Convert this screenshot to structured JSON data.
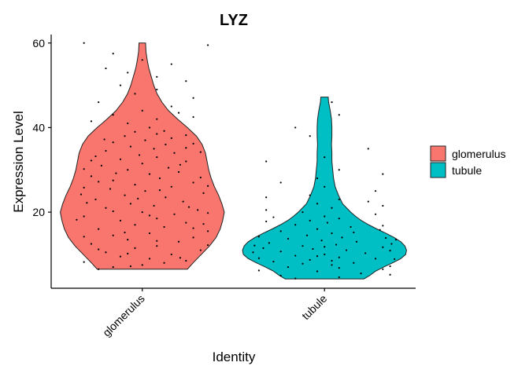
{
  "chart_data": {
    "type": "violin",
    "title": "LYZ",
    "xlabel": "Identity",
    "ylabel": "Expression Level",
    "categories": [
      "glomerulus",
      "tubule"
    ],
    "ylim": [
      2,
      62
    ],
    "yticks": [
      20,
      40,
      60
    ],
    "legend_placement": "right",
    "grid": false,
    "series": [
      {
        "name": "glomerulus",
        "color": "#F8766D",
        "profile": [
          [
            6.5,
            0.55
          ],
          [
            8,
            0.62
          ],
          [
            10,
            0.72
          ],
          [
            12,
            0.82
          ],
          [
            14,
            0.9
          ],
          [
            16,
            0.95
          ],
          [
            18,
            0.98
          ],
          [
            20,
            1.0
          ],
          [
            22,
            0.97
          ],
          [
            24,
            0.93
          ],
          [
            26,
            0.88
          ],
          [
            28,
            0.84
          ],
          [
            30,
            0.81
          ],
          [
            32,
            0.79
          ],
          [
            34,
            0.77
          ],
          [
            36,
            0.73
          ],
          [
            38,
            0.66
          ],
          [
            40,
            0.55
          ],
          [
            42,
            0.43
          ],
          [
            44,
            0.32
          ],
          [
            46,
            0.24
          ],
          [
            48,
            0.18
          ],
          [
            50,
            0.14
          ],
          [
            52,
            0.11
          ],
          [
            54,
            0.08
          ],
          [
            56,
            0.06
          ],
          [
            58,
            0.045
          ],
          [
            60,
            0.04
          ]
        ],
        "points": [
          [
            6.5,
            0.2
          ],
          [
            7,
            0.3
          ],
          [
            7.5,
            0.5
          ],
          [
            8,
            0.65
          ],
          [
            8.5,
            0.8
          ],
          [
            9,
            0.55
          ],
          [
            9.5,
            0.35
          ],
          [
            10,
            0.7
          ],
          [
            10.5,
            0.25
          ],
          [
            11,
            0.9
          ],
          [
            11.5,
            0.45
          ],
          [
            12,
            0.6
          ],
          [
            12.5,
            0.15
          ],
          [
            13,
            0.75
          ],
          [
            13.5,
            0.4
          ],
          [
            14,
            0.85
          ],
          [
            14.5,
            0.3
          ],
          [
            15,
            0.55
          ],
          [
            15.5,
            0.95
          ],
          [
            16,
            0.2
          ],
          [
            16.5,
            0.65
          ],
          [
            17,
            0.45
          ],
          [
            17.5,
            0.8
          ],
          [
            18,
            0.35
          ],
          [
            18.5,
            0.6
          ],
          [
            19,
            0.1
          ],
          [
            19.5,
            0.72
          ],
          [
            20,
            0.5
          ],
          [
            20.5,
            0.88
          ],
          [
            21,
            0.25
          ],
          [
            21.5,
            0.58
          ],
          [
            22,
            0.42
          ],
          [
            22.5,
            0.78
          ],
          [
            23,
            0.18
          ],
          [
            23.5,
            0.66
          ],
          [
            24,
            0.38
          ],
          [
            24.5,
            0.92
          ],
          [
            25,
            0.52
          ],
          [
            25.5,
            0.28
          ],
          [
            26,
            0.7
          ],
          [
            26.5,
            0.45
          ],
          [
            27,
            0.85
          ],
          [
            27.5,
            0.3
          ],
          [
            28,
            0.62
          ],
          [
            28.5,
            0.15
          ],
          [
            29,
            0.55
          ],
          [
            29.5,
            0.75
          ],
          [
            30,
            0.4
          ],
          [
            30.5,
            0.68
          ],
          [
            31,
            0.22
          ],
          [
            31.5,
            0.5
          ],
          [
            32,
            0.8
          ],
          [
            32.5,
            0.35
          ],
          [
            33,
            0.6
          ],
          [
            33.5,
            0.48
          ],
          [
            34,
            0.72
          ],
          [
            34.5,
            0.25
          ],
          [
            35,
            0.58
          ],
          [
            35.5,
            0.42
          ],
          [
            36,
            0.66
          ],
          [
            36.5,
            0.3
          ],
          [
            37,
            0.52
          ],
          [
            37.5,
            0.7
          ],
          [
            38,
            0.38
          ],
          [
            38.5,
            0.6
          ],
          [
            39,
            0.45
          ],
          [
            40,
            0.55
          ],
          [
            41,
            0.4
          ],
          [
            42,
            0.6
          ],
          [
            43,
            0.3
          ],
          [
            44,
            0.5
          ],
          [
            46,
            0.2
          ],
          [
            48,
            0.45
          ],
          [
            50,
            0.35
          ],
          [
            52,
            0.6
          ],
          [
            54,
            0.25
          ],
          [
            56,
            0.5
          ],
          [
            60,
            0.1
          ],
          [
            7.2,
            0.42
          ],
          [
            9.2,
            0.76
          ],
          [
            11.2,
            0.2
          ],
          [
            13.2,
            0.6
          ],
          [
            15.2,
            0.38
          ],
          [
            17.2,
            0.92
          ],
          [
            19.2,
            0.55
          ],
          [
            21.2,
            0.82
          ],
          [
            23.2,
            0.47
          ],
          [
            25.2,
            0.62
          ],
          [
            27.2,
            0.2
          ],
          [
            29.2,
            0.32
          ],
          [
            31.2,
            0.76
          ],
          [
            33.2,
            0.18
          ],
          [
            35.2,
            0.8
          ],
          [
            37.2,
            0.24
          ],
          [
            39.2,
            0.65
          ],
          [
            12.2,
            0.95
          ],
          [
            18.2,
            0.05
          ],
          [
            22.2,
            0.12
          ],
          [
            26.2,
            0.95
          ],
          [
            16.2,
            0.85
          ],
          [
            20.2,
            0.3
          ],
          [
            24.2,
            0.08
          ],
          [
            28.2,
            0.9
          ],
          [
            30.2,
            0.1
          ],
          [
            34.2,
            0.9
          ],
          [
            36.2,
            0.85
          ],
          [
            10.2,
            0.4
          ],
          [
            14.2,
            0.1
          ],
          [
            19.8,
            0.95
          ],
          [
            25.8,
            0.1
          ],
          [
            32.2,
            0.15
          ],
          [
            38.2,
            0.8
          ],
          [
            8.2,
            0.1
          ],
          [
            42.5,
            0.85
          ],
          [
            45,
            0.7
          ],
          [
            47,
            0.85
          ],
          [
            49,
            0.6
          ],
          [
            51,
            0.8
          ],
          [
            53,
            0.4
          ],
          [
            55,
            0.7
          ],
          [
            41.5,
            0.15
          ],
          [
            43.5,
            0.75
          ],
          [
            57.5,
            0.3
          ],
          [
            59.5,
            0.95
          ]
        ]
      },
      {
        "name": "tubule",
        "color": "#00BFC4",
        "profile": [
          [
            4.2,
            0.48
          ],
          [
            5,
            0.55
          ],
          [
            6,
            0.62
          ],
          [
            7,
            0.72
          ],
          [
            8,
            0.83
          ],
          [
            9,
            0.93
          ],
          [
            10,
            0.99
          ],
          [
            11,
            1.0
          ],
          [
            12,
            0.98
          ],
          [
            13,
            0.93
          ],
          [
            14,
            0.85
          ],
          [
            15,
            0.75
          ],
          [
            16,
            0.64
          ],
          [
            17,
            0.54
          ],
          [
            18,
            0.45
          ],
          [
            19,
            0.38
          ],
          [
            20,
            0.32
          ],
          [
            21,
            0.27
          ],
          [
            22,
            0.22
          ],
          [
            24,
            0.17
          ],
          [
            26,
            0.13
          ],
          [
            28,
            0.11
          ],
          [
            30,
            0.1
          ],
          [
            32,
            0.09
          ],
          [
            34,
            0.09
          ],
          [
            36,
            0.085
          ],
          [
            38,
            0.09
          ],
          [
            40,
            0.09
          ],
          [
            42,
            0.085
          ],
          [
            44,
            0.07
          ],
          [
            46,
            0.05
          ],
          [
            47.2,
            0.045
          ]
        ],
        "points": [
          [
            4.3,
            0.3
          ],
          [
            4.6,
            0.6
          ],
          [
            5,
            0.2
          ],
          [
            5.5,
            0.75
          ],
          [
            6,
            0.45
          ],
          [
            6.5,
            0.9
          ],
          [
            7,
            0.25
          ],
          [
            7.5,
            0.55
          ],
          [
            8,
            0.7
          ],
          [
            8.3,
            0.15
          ],
          [
            8.7,
            0.4
          ],
          [
            9,
            0.85
          ],
          [
            9.3,
            0.6
          ],
          [
            9.7,
            0.3
          ],
          [
            10,
            0.5
          ],
          [
            10.3,
            0.78
          ],
          [
            10.7,
            0.2
          ],
          [
            11,
            0.65
          ],
          [
            11.3,
            0.42
          ],
          [
            11.7,
            0.9
          ],
          [
            12,
            0.35
          ],
          [
            12.3,
            0.58
          ],
          [
            12.7,
            0.12
          ],
          [
            13,
            0.72
          ],
          [
            13.3,
            0.48
          ],
          [
            13.7,
            0.25
          ],
          [
            14,
            0.62
          ],
          [
            14.5,
            0.38
          ],
          [
            15,
            0.55
          ],
          [
            15.5,
            0.2
          ],
          [
            16,
            0.45
          ],
          [
            16.5,
            0.68
          ],
          [
            17,
            0.3
          ],
          [
            17.5,
            0.52
          ],
          [
            18,
            0.4
          ],
          [
            18.5,
            0.6
          ],
          [
            19,
            0.5
          ],
          [
            20,
            0.35
          ],
          [
            21,
            0.55
          ],
          [
            22,
            0.45
          ],
          [
            23,
            0.6
          ],
          [
            24,
            0.4
          ],
          [
            26,
            0.5
          ],
          [
            28,
            0.45
          ],
          [
            30,
            0.6
          ],
          [
            33,
            0.5
          ],
          [
            40,
            0.3
          ],
          [
            46,
            0.55
          ],
          [
            9.1,
            0.05
          ],
          [
            10.9,
            0.95
          ],
          [
            12.1,
            0.02
          ],
          [
            13.9,
            0.92
          ],
          [
            8.9,
            0.98
          ],
          [
            11.5,
            0.08
          ],
          [
            14.2,
            0.05
          ],
          [
            15.8,
            0.88
          ],
          [
            17.8,
            0.1
          ],
          [
            19.5,
            0.85
          ],
          [
            20.5,
            0.1
          ],
          [
            22.5,
            0.8
          ],
          [
            7.2,
            0.95
          ],
          [
            6.2,
            0.05
          ],
          [
            5.2,
            0.95
          ],
          [
            13.5,
            0.99
          ],
          [
            10.5,
            0.01
          ],
          [
            12.5,
            0.96
          ],
          [
            16.8,
            0.9
          ],
          [
            18.8,
            0.15
          ],
          [
            21.5,
            0.9
          ],
          [
            23.5,
            0.1
          ],
          [
            25,
            0.85
          ],
          [
            27,
            0.2
          ],
          [
            29,
            0.9
          ],
          [
            32,
            0.1
          ],
          [
            35,
            0.8
          ],
          [
            38,
            0.4
          ],
          [
            43,
            0.6
          ],
          [
            15.2,
            0.7
          ],
          [
            11.8,
            0.5
          ],
          [
            9.6,
            0.45
          ],
          [
            8.5,
            0.55
          ],
          [
            7.8,
            0.35
          ],
          [
            6.8,
            0.6
          ]
        ]
      }
    ]
  }
}
